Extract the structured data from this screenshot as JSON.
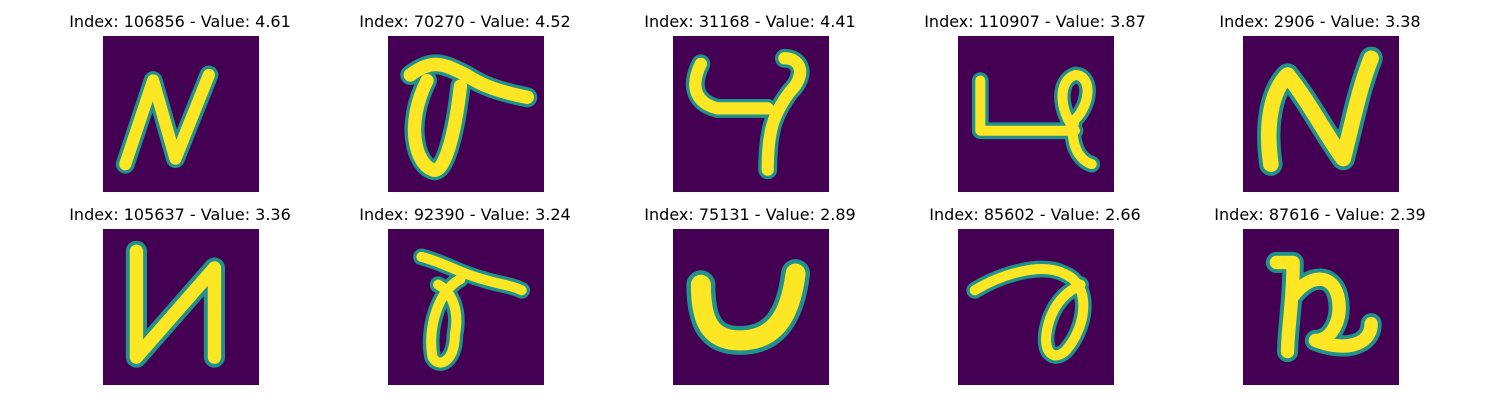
{
  "figure": {
    "background_color": "#ffffff",
    "colormap": "viridis",
    "background_cell_color": "#440154",
    "stroke_edge_color": "#21918c",
    "stroke_core_color": "#fde725"
  },
  "panels": [
    {
      "title": "Index: 106856 - Value: 4.61",
      "index": 106856,
      "value": 4.61,
      "glyph_icon": "handwritten-n-glyph-icon"
    },
    {
      "title": "Index: 70270 - Value: 4.52",
      "index": 70270,
      "value": 4.52,
      "glyph_icon": "handwritten-loop-arm-glyph-icon"
    },
    {
      "title": "Index: 31168 - Value: 4.41",
      "index": 31168,
      "value": 4.41,
      "glyph_icon": "handwritten-4-glyph-icon"
    },
    {
      "title": "Index: 110907 - Value: 3.87",
      "index": 110907,
      "value": 3.87,
      "glyph_icon": "handwritten-loop-glyph-icon"
    },
    {
      "title": "Index: 2906 - Value: 3.38",
      "index": 2906,
      "value": 3.38,
      "glyph_icon": "handwritten-n-glyph-icon"
    },
    {
      "title": "Index: 105637 - Value: 3.36",
      "index": 105637,
      "value": 3.36,
      "glyph_icon": "handwritten-n-glyph-icon"
    },
    {
      "title": "Index: 92390 - Value: 3.24",
      "index": 92390,
      "value": 3.24,
      "glyph_icon": "handwritten-loop-arm-glyph-icon"
    },
    {
      "title": "Index: 75131 - Value: 2.89",
      "index": 75131,
      "value": 2.89,
      "glyph_icon": "handwritten-u-glyph-icon"
    },
    {
      "title": "Index: 85602 - Value: 2.66",
      "index": 85602,
      "value": 2.66,
      "glyph_icon": "handwritten-loop-glyph-icon"
    },
    {
      "title": "Index: 87616 - Value: 2.39",
      "index": 87616,
      "value": 2.39,
      "glyph_icon": "handwritten-n-glyph-icon"
    }
  ]
}
